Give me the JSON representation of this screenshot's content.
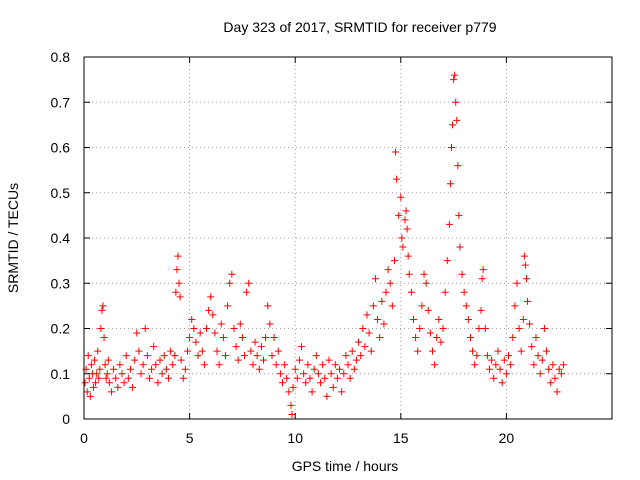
{
  "chart_data": {
    "type": "scatter",
    "title": "Day 323 of 2017, SRMTID for receiver p779",
    "xlabel": "GPS time / hours",
    "ylabel": "SRMTID / TECUs",
    "xlim": [
      0,
      25
    ],
    "ylim": [
      0,
      0.8
    ],
    "xticks": [
      0,
      5,
      10,
      15,
      20
    ],
    "yticks": [
      0,
      0.1,
      0.2,
      0.3,
      0.4,
      0.5,
      0.6,
      0.7,
      0.8
    ],
    "grid": true,
    "marker": "+",
    "color": "#ff0000",
    "series": [
      {
        "name": "SRMTID",
        "points": [
          [
            0.05,
            0.08
          ],
          [
            0.1,
            0.11
          ],
          [
            0.15,
            0.06
          ],
          [
            0.2,
            0.14
          ],
          [
            0.25,
            0.09
          ],
          [
            0.3,
            0.05
          ],
          [
            0.35,
            0.12
          ],
          [
            0.4,
            0.1
          ],
          [
            0.45,
            0.07
          ],
          [
            0.5,
            0.13
          ],
          [
            0.55,
            0.08
          ],
          [
            0.6,
            0.1
          ],
          [
            0.65,
            0.15
          ],
          [
            0.7,
            0.09
          ],
          [
            0.75,
            0.11
          ],
          [
            0.8,
            0.2
          ],
          [
            0.85,
            0.24
          ],
          [
            0.9,
            0.25
          ],
          [
            0.95,
            0.18
          ],
          [
            1.0,
            0.12
          ],
          [
            1.05,
            0.09
          ],
          [
            1.1,
            0.1
          ],
          [
            1.15,
            0.13
          ],
          [
            1.2,
            0.08
          ],
          [
            1.3,
            0.06
          ],
          [
            1.4,
            0.11
          ],
          [
            1.5,
            0.09
          ],
          [
            1.6,
            0.07
          ],
          [
            1.7,
            0.12
          ],
          [
            1.8,
            0.1
          ],
          [
            1.9,
            0.08
          ],
          [
            2.0,
            0.14
          ],
          [
            2.1,
            0.09
          ],
          [
            2.2,
            0.11
          ],
          [
            2.3,
            0.07
          ],
          [
            2.4,
            0.13
          ],
          [
            2.5,
            0.19
          ],
          [
            2.6,
            0.15
          ],
          [
            2.7,
            0.1
          ],
          [
            2.8,
            0.12
          ],
          [
            2.9,
            0.2
          ],
          [
            3.0,
            0.14
          ],
          [
            3.1,
            0.09
          ],
          [
            3.2,
            0.11
          ],
          [
            3.3,
            0.16
          ],
          [
            3.4,
            0.12
          ],
          [
            3.5,
            0.08
          ],
          [
            3.6,
            0.13
          ],
          [
            3.7,
            0.1
          ],
          [
            3.8,
            0.14
          ],
          [
            3.9,
            0.11
          ],
          [
            4.0,
            0.09
          ],
          [
            4.1,
            0.15
          ],
          [
            4.2,
            0.12
          ],
          [
            4.3,
            0.14
          ],
          [
            4.35,
            0.28
          ],
          [
            4.4,
            0.33
          ],
          [
            4.45,
            0.36
          ],
          [
            4.5,
            0.3
          ],
          [
            4.55,
            0.27
          ],
          [
            4.6,
            0.13
          ],
          [
            4.7,
            0.09
          ],
          [
            4.8,
            0.11
          ],
          [
            4.9,
            0.15
          ],
          [
            5.0,
            0.18
          ],
          [
            5.1,
            0.22
          ],
          [
            5.2,
            0.2
          ],
          [
            5.3,
            0.17
          ],
          [
            5.4,
            0.14
          ],
          [
            5.5,
            0.19
          ],
          [
            5.6,
            0.15
          ],
          [
            5.7,
            0.12
          ],
          [
            5.8,
            0.2
          ],
          [
            5.9,
            0.24
          ],
          [
            6.0,
            0.27
          ],
          [
            6.1,
            0.23
          ],
          [
            6.2,
            0.19
          ],
          [
            6.3,
            0.15
          ],
          [
            6.4,
            0.12
          ],
          [
            6.5,
            0.21
          ],
          [
            6.6,
            0.18
          ],
          [
            6.7,
            0.14
          ],
          [
            6.8,
            0.25
          ],
          [
            6.9,
            0.3
          ],
          [
            7.0,
            0.32
          ],
          [
            7.1,
            0.2
          ],
          [
            7.2,
            0.16
          ],
          [
            7.3,
            0.13
          ],
          [
            7.4,
            0.21
          ],
          [
            7.5,
            0.18
          ],
          [
            7.6,
            0.14
          ],
          [
            7.7,
            0.28
          ],
          [
            7.8,
            0.3
          ],
          [
            7.9,
            0.15
          ],
          [
            8.0,
            0.12
          ],
          [
            8.1,
            0.17
          ],
          [
            8.2,
            0.14
          ],
          [
            8.3,
            0.11
          ],
          [
            8.4,
            0.16
          ],
          [
            8.5,
            0.13
          ],
          [
            8.6,
            0.18
          ],
          [
            8.7,
            0.25
          ],
          [
            8.8,
            0.21
          ],
          [
            8.9,
            0.14
          ],
          [
            9.0,
            0.18
          ],
          [
            9.1,
            0.12
          ],
          [
            9.2,
            0.15
          ],
          [
            9.3,
            0.1
          ],
          [
            9.4,
            0.08
          ],
          [
            9.5,
            0.12
          ],
          [
            9.6,
            0.09
          ],
          [
            9.7,
            0.06
          ],
          [
            9.8,
            0.03
          ],
          [
            9.85,
            0.01
          ],
          [
            9.9,
            0.07
          ],
          [
            10.0,
            0.11
          ],
          [
            10.1,
            0.09
          ],
          [
            10.2,
            0.13
          ],
          [
            10.3,
            0.16
          ],
          [
            10.4,
            0.1
          ],
          [
            10.5,
            0.08
          ],
          [
            10.6,
            0.12
          ],
          [
            10.7,
            0.09
          ],
          [
            10.8,
            0.06
          ],
          [
            10.9,
            0.11
          ],
          [
            11.0,
            0.14
          ],
          [
            11.1,
            0.1
          ],
          [
            11.2,
            0.08
          ],
          [
            11.3,
            0.12
          ],
          [
            11.4,
            0.09
          ],
          [
            11.5,
            0.05
          ],
          [
            11.6,
            0.13
          ],
          [
            11.7,
            0.1
          ],
          [
            11.8,
            0.07
          ],
          [
            11.9,
            0.12
          ],
          [
            12.0,
            0.09
          ],
          [
            12.1,
            0.11
          ],
          [
            12.2,
            0.06
          ],
          [
            12.3,
            0.1
          ],
          [
            12.4,
            0.14
          ],
          [
            12.5,
            0.12
          ],
          [
            12.6,
            0.09
          ],
          [
            12.7,
            0.15
          ],
          [
            12.8,
            0.11
          ],
          [
            12.9,
            0.13
          ],
          [
            13.0,
            0.17
          ],
          [
            13.1,
            0.14
          ],
          [
            13.2,
            0.2
          ],
          [
            13.3,
            0.16
          ],
          [
            13.4,
            0.23
          ],
          [
            13.5,
            0.19
          ],
          [
            13.6,
            0.15
          ],
          [
            13.7,
            0.25
          ],
          [
            13.8,
            0.31
          ],
          [
            13.9,
            0.22
          ],
          [
            14.0,
            0.18
          ],
          [
            14.1,
            0.26
          ],
          [
            14.2,
            0.21
          ],
          [
            14.3,
            0.28
          ],
          [
            14.4,
            0.33
          ],
          [
            14.5,
            0.3
          ],
          [
            14.6,
            0.25
          ],
          [
            14.7,
            0.35
          ],
          [
            14.75,
            0.59
          ],
          [
            14.8,
            0.53
          ],
          [
            14.9,
            0.45
          ],
          [
            15.0,
            0.49
          ],
          [
            15.05,
            0.4
          ],
          [
            15.1,
            0.38
          ],
          [
            15.2,
            0.44
          ],
          [
            15.25,
            0.46
          ],
          [
            15.3,
            0.42
          ],
          [
            15.35,
            0.36
          ],
          [
            15.4,
            0.32
          ],
          [
            15.5,
            0.28
          ],
          [
            15.6,
            0.22
          ],
          [
            15.7,
            0.18
          ],
          [
            15.8,
            0.15
          ],
          [
            15.9,
            0.2
          ],
          [
            16.0,
            0.25
          ],
          [
            16.1,
            0.32
          ],
          [
            16.2,
            0.3
          ],
          [
            16.3,
            0.24
          ],
          [
            16.4,
            0.19
          ],
          [
            16.5,
            0.15
          ],
          [
            16.6,
            0.12
          ],
          [
            16.7,
            0.18
          ],
          [
            16.8,
            0.22
          ],
          [
            16.9,
            0.17
          ],
          [
            17.0,
            0.2
          ],
          [
            17.1,
            0.28
          ],
          [
            17.2,
            0.35
          ],
          [
            17.3,
            0.43
          ],
          [
            17.35,
            0.52
          ],
          [
            17.4,
            0.6
          ],
          [
            17.45,
            0.65
          ],
          [
            17.5,
            0.75
          ],
          [
            17.55,
            0.76
          ],
          [
            17.6,
            0.7
          ],
          [
            17.65,
            0.66
          ],
          [
            17.7,
            0.56
          ],
          [
            17.75,
            0.45
          ],
          [
            17.8,
            0.38
          ],
          [
            17.9,
            0.32
          ],
          [
            18.0,
            0.28
          ],
          [
            18.1,
            0.25
          ],
          [
            18.2,
            0.22
          ],
          [
            18.3,
            0.18
          ],
          [
            18.4,
            0.15
          ],
          [
            18.5,
            0.12
          ],
          [
            18.6,
            0.14
          ],
          [
            18.7,
            0.2
          ],
          [
            18.8,
            0.24
          ],
          [
            18.85,
            0.31
          ],
          [
            18.9,
            0.33
          ],
          [
            19.0,
            0.2
          ],
          [
            19.1,
            0.14
          ],
          [
            19.2,
            0.11
          ],
          [
            19.3,
            0.13
          ],
          [
            19.4,
            0.09
          ],
          [
            19.5,
            0.12
          ],
          [
            19.6,
            0.15
          ],
          [
            19.7,
            0.11
          ],
          [
            19.8,
            0.08
          ],
          [
            19.9,
            0.13
          ],
          [
            20.0,
            0.1
          ],
          [
            20.1,
            0.14
          ],
          [
            20.2,
            0.12
          ],
          [
            20.3,
            0.18
          ],
          [
            20.4,
            0.25
          ],
          [
            20.5,
            0.3
          ],
          [
            20.6,
            0.2
          ],
          [
            20.7,
            0.15
          ],
          [
            20.8,
            0.22
          ],
          [
            20.85,
            0.36
          ],
          [
            20.9,
            0.34
          ],
          [
            20.95,
            0.31
          ],
          [
            21.0,
            0.26
          ],
          [
            21.1,
            0.21
          ],
          [
            21.2,
            0.16
          ],
          [
            21.3,
            0.12
          ],
          [
            21.4,
            0.18
          ],
          [
            21.5,
            0.14
          ],
          [
            21.6,
            0.1
          ],
          [
            21.7,
            0.13
          ],
          [
            21.8,
            0.2
          ],
          [
            21.9,
            0.15
          ],
          [
            22.0,
            0.11
          ],
          [
            22.1,
            0.08
          ],
          [
            22.2,
            0.12
          ],
          [
            22.3,
            0.09
          ],
          [
            22.4,
            0.06
          ],
          [
            22.5,
            0.11
          ],
          [
            22.6,
            0.1
          ],
          [
            22.7,
            0.12
          ]
        ]
      }
    ]
  }
}
